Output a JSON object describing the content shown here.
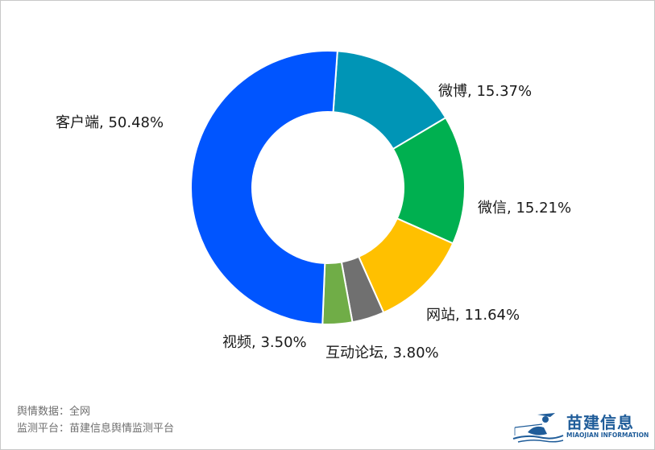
{
  "chart_data": {
    "type": "pie",
    "donut": true,
    "legend": "none",
    "slices": [
      {
        "label": "微博, 15.37%",
        "name": "微博",
        "value": 15.37,
        "color": "#0095b6"
      },
      {
        "label": "微信, 15.21%",
        "name": "微信",
        "value": 15.21,
        "color": "#00b050"
      },
      {
        "label": "网站, 11.64%",
        "name": "网站",
        "value": 11.64,
        "color": "#ffc000"
      },
      {
        "label": "互动论坛, 3.80%",
        "name": "互动论坛",
        "value": 3.8,
        "color": "#707070"
      },
      {
        "label": "视频, 3.50%",
        "name": "视频",
        "value": 3.5,
        "color": "#70ad47"
      },
      {
        "label": "客户端, 50.48%",
        "name": "客户端",
        "value": 50.48,
        "color": "#0055ff"
      }
    ]
  },
  "footer": {
    "source": "舆情数据：全网",
    "platform": "监测平台：苗建信息舆情监测平台"
  },
  "logo": {
    "name": "苗建信息",
    "subtitle": "MIAOJIAN INFORMATION",
    "color": "#1f5c99"
  }
}
